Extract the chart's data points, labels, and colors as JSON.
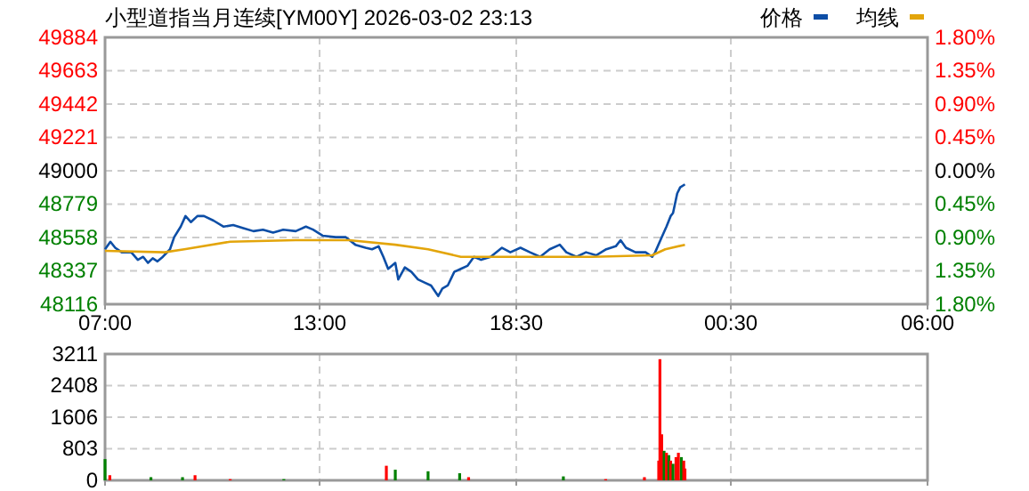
{
  "chart_data": [
    {
      "type": "line",
      "title": "小型道指当月连续[YM00Y] 2026-03-02 23:13",
      "legend": "top right",
      "grid": true,
      "line_style": "solid",
      "marker": "none",
      "xlim": [
        "2026-03-02T07:00",
        "2026-03-03T06:00"
      ],
      "xticks": [
        {
          "value": "2026-03-02T07:00",
          "label": "07:00"
        },
        {
          "value": "2026-03-02T13:00",
          "label": "13:00"
        },
        {
          "value": "2026-03-02T18:30",
          "label": "18:30"
        },
        {
          "value": "2026-03-03T00:30",
          "label": "00:30"
        },
        {
          "value": "2026-03-03T06:00",
          "label": "06:00"
        }
      ],
      "ylim": [
        48116,
        49884
      ],
      "yticks": [
        48116,
        48337,
        48558,
        48779,
        49000,
        49221,
        49442,
        49663,
        49884
      ],
      "y2lim": [
        -1.8,
        1.8
      ],
      "y2ticks": [
        {
          "value": -1.8,
          "label": "1.80%"
        },
        {
          "value": -1.35,
          "label": "1.35%"
        },
        {
          "value": -0.9,
          "label": "0.90%"
        },
        {
          "value": -0.45,
          "label": "0.45%"
        },
        {
          "value": 0,
          "label": "0.00%"
        },
        {
          "value": 0.45,
          "label": "0.45%"
        },
        {
          "value": 0.9,
          "label": "0.90%"
        },
        {
          "value": 1.35,
          "label": "1.35%"
        },
        {
          "value": 1.8,
          "label": "1.80%"
        }
      ],
      "series": [
        {
          "name": "价格",
          "color": "#0d4ea6",
          "x": [
            "2026-03-02T07:00",
            "2026-03-02T07:09",
            "2026-03-02T07:17",
            "2026-03-02T07:28",
            "2026-03-02T07:44",
            "2026-03-02T07:55",
            "2026-03-02T08:04",
            "2026-03-02T08:12",
            "2026-03-02T08:20",
            "2026-03-02T08:28",
            "2026-03-02T08:37",
            "2026-03-02T08:49",
            "2026-03-02T08:56",
            "2026-03-02T09:07",
            "2026-03-02T09:15",
            "2026-03-02T09:24",
            "2026-03-02T09:35",
            "2026-03-02T09:46",
            "2026-03-02T10:02",
            "2026-03-02T10:19",
            "2026-03-02T10:35",
            "2026-03-02T10:52",
            "2026-03-02T11:09",
            "2026-03-02T11:25",
            "2026-03-02T11:42",
            "2026-03-02T11:59",
            "2026-03-02T12:20",
            "2026-03-02T12:37",
            "2026-03-02T12:49",
            "2026-03-02T13:05",
            "2026-03-02T13:27",
            "2026-03-02T13:44",
            "2026-03-02T14:00",
            "2026-03-02T14:17",
            "2026-03-02T14:28",
            "2026-03-02T14:39",
            "2026-03-02T14:47",
            "2026-03-02T14:55",
            "2026-03-02T15:07",
            "2026-03-02T15:12",
            "2026-03-02T15:23",
            "2026-03-02T15:34",
            "2026-03-02T15:45",
            "2026-03-02T15:56",
            "2026-03-02T16:07",
            "2026-03-02T16:19",
            "2026-03-02T16:26",
            "2026-03-02T16:35",
            "2026-03-02T16:46",
            "2026-03-02T16:57",
            "2026-03-02T17:08",
            "2026-03-02T17:19",
            "2026-03-02T17:31",
            "2026-03-02T17:47",
            "2026-03-02T18:06",
            "2026-03-02T18:20",
            "2026-03-02T18:37",
            "2026-03-02T18:53",
            "2026-03-02T19:10",
            "2026-03-02T19:26",
            "2026-03-02T19:43",
            "2026-03-02T19:54",
            "2026-03-02T20:11",
            "2026-03-02T20:27",
            "2026-03-02T20:44",
            "2026-03-02T21:01",
            "2026-03-02T21:17",
            "2026-03-02T21:25",
            "2026-03-02T21:34",
            "2026-03-02T21:50",
            "2026-03-02T22:07",
            "2026-03-02T22:18",
            "2026-03-02T22:23",
            "2026-03-02T22:34",
            "2026-03-02T22:42",
            "2026-03-02T22:49",
            "2026-03-02T22:53",
            "2026-03-02T23:00",
            "2026-03-02T23:05",
            "2026-03-02T23:13"
          ],
          "values": [
            48480,
            48530,
            48490,
            48460,
            48460,
            48410,
            48430,
            48390,
            48420,
            48400,
            48430,
            48480,
            48560,
            48630,
            48700,
            48660,
            48700,
            48700,
            48670,
            48630,
            48640,
            48620,
            48600,
            48610,
            48590,
            48610,
            48600,
            48630,
            48610,
            48570,
            48560,
            48560,
            48510,
            48490,
            48480,
            48500,
            48430,
            48350,
            48390,
            48280,
            48360,
            48330,
            48280,
            48260,
            48240,
            48170,
            48220,
            48240,
            48330,
            48350,
            48370,
            48430,
            48410,
            48430,
            48490,
            48460,
            48490,
            48460,
            48430,
            48480,
            48510,
            48460,
            48430,
            48460,
            48440,
            48480,
            48500,
            48540,
            48490,
            48460,
            48460,
            48430,
            48460,
            48560,
            48630,
            48700,
            48720,
            48850,
            48890,
            48910
          ]
        },
        {
          "name": "均线",
          "color": "#e3a50b",
          "x": [
            "2026-03-02T07:00",
            "2026-03-02T08:40",
            "2026-03-02T09:13",
            "2026-03-02T10:30",
            "2026-03-02T12:20",
            "2026-03-02T13:49",
            "2026-03-02T15:07",
            "2026-03-02T16:02",
            "2026-03-02T16:57",
            "2026-03-02T18:04",
            "2026-03-02T20:38",
            "2026-03-02T22:18",
            "2026-03-02T22:40",
            "2026-03-02T23:13"
          ],
          "values": [
            48470,
            48460,
            48480,
            48530,
            48540,
            48540,
            48510,
            48480,
            48430,
            48430,
            48430,
            48440,
            48480,
            48510
          ]
        }
      ]
    },
    {
      "type": "bar",
      "grid": true,
      "tick_labels": "y",
      "xlim": [
        "2026-03-02T07:00",
        "2026-03-03T06:00"
      ],
      "xticks": [
        {
          "value": "2026-03-02T07:00",
          "label": null
        },
        {
          "value": "2026-03-02T13:00",
          "label": null
        },
        {
          "value": "2026-03-02T18:30",
          "label": null
        },
        {
          "value": "2026-03-03T00:30",
          "label": null
        },
        {
          "value": "2026-03-03T06:00",
          "label": null
        }
      ],
      "ylim": [
        0,
        3211
      ],
      "yticks": [
        0,
        803,
        1606,
        2408,
        3211
      ],
      "x": [
        "2026-03-02T07:00",
        "2026-03-02T07:08",
        "2026-03-02T08:17",
        "2026-03-02T09:10",
        "2026-03-02T09:31",
        "2026-03-02T10:30",
        "2026-03-02T12:00",
        "2026-03-02T14:52",
        "2026-03-02T15:07",
        "2026-03-02T16:02",
        "2026-03-02T16:55",
        "2026-03-02T17:10",
        "2026-03-02T19:49",
        "2026-03-02T21:00",
        "2026-03-02T22:05",
        "2026-03-02T22:29",
        "2026-03-02T22:31",
        "2026-03-02T22:34",
        "2026-03-02T22:38",
        "2026-03-02T22:42",
        "2026-03-02T22:46",
        "2026-03-02T22:49",
        "2026-03-02T22:53",
        "2026-03-02T22:58",
        "2026-03-02T23:02",
        "2026-03-02T23:07",
        "2026-03-02T23:11",
        "2026-03-02T23:13"
      ],
      "values": [
        540,
        130,
        80,
        80,
        130,
        30,
        30,
        370,
        270,
        230,
        180,
        80,
        100,
        30,
        80,
        500,
        3080,
        1170,
        750,
        700,
        640,
        500,
        420,
        590,
        700,
        590,
        500,
        300
      ],
      "colors": [
        "#008000",
        "#ff0000",
        "#008000",
        "#008000",
        "#ff0000",
        "#ff0000",
        "#008000",
        "#ff0000",
        "#008000",
        "#008000",
        "#008000",
        "#ff0000",
        "#008000",
        "#ff0000",
        "#ff0000",
        "#ff0000",
        "#ff0000",
        "#ff0000",
        "#008000",
        "#ff0000",
        "#008000",
        "#ff0000",
        "#008000",
        "#ff0000",
        "#ff0000",
        "#008000",
        "#ff0000",
        "#ff0000"
      ]
    }
  ]
}
